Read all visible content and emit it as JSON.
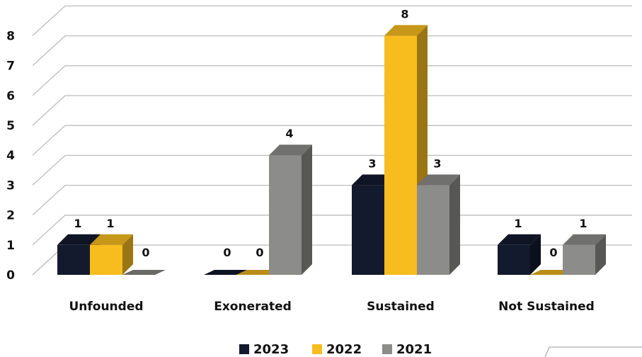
{
  "chart_data": {
    "type": "bar",
    "title": "",
    "xlabel": "",
    "ylabel": "",
    "categories": [
      "Unfounded",
      "Exonerated",
      "Sustained",
      "Not Sustained"
    ],
    "series": [
      {
        "name": "2023",
        "values": [
          1,
          0,
          3,
          1
        ]
      },
      {
        "name": "2022",
        "values": [
          1,
          0,
          8,
          0
        ]
      },
      {
        "name": "2021",
        "values": [
          0,
          4,
          3,
          1
        ]
      }
    ],
    "ylim": [
      0,
      8
    ],
    "yticks": [
      "0",
      "1",
      "2",
      "3",
      "4",
      "5",
      "6",
      "7",
      "8"
    ],
    "grid": true,
    "style": "3d",
    "legend_position": "bottom",
    "colors": {
      "2023": "#141a2e",
      "2022": "#f7bd1e",
      "2021": "#8c8c8a"
    }
  }
}
